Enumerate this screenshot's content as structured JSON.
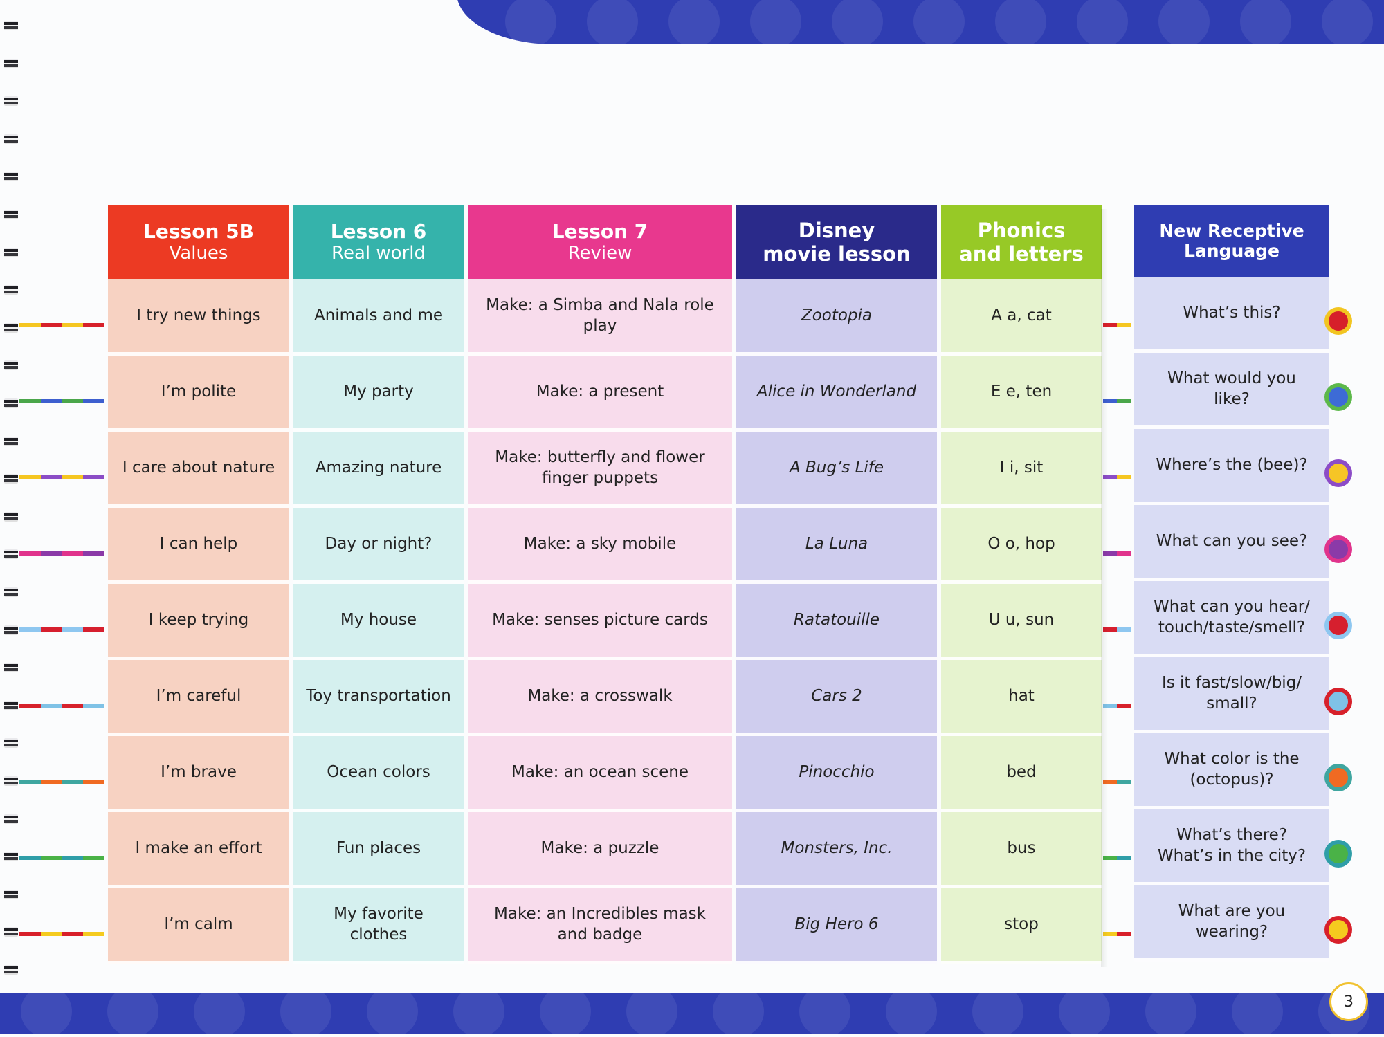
{
  "columns": [
    {
      "line1": "Lesson 5B",
      "line2": "Values",
      "color": "#ec3a23"
    },
    {
      "line1": "Lesson 6",
      "line2": "Real world",
      "color": "#35b3ab"
    },
    {
      "line1": "Lesson 7",
      "line2": "Review",
      "color": "#e8388e"
    },
    {
      "line1": "Disney",
      "line2": "movie lesson",
      "color": "#2a2a8a"
    },
    {
      "line1": "Phonics",
      "line2": "and letters",
      "color": "#97c926"
    }
  ],
  "receptive_header": {
    "line1": "New Receptive",
    "line2": "Language",
    "color": "#2f3db2"
  },
  "rows": [
    {
      "values": "I try new things",
      "real_world": "Animals and me",
      "review": "Make: a Simba and Nala role play",
      "movie": "Zootopia",
      "phonics": "A a, cat",
      "receptive": "What’s this?"
    },
    {
      "values": "I’m polite",
      "real_world": "My party",
      "review": "Make: a present",
      "movie": "Alice in Wonderland",
      "phonics": "E e, ten",
      "receptive": "What would you like?"
    },
    {
      "values": "I care about nature",
      "real_world": "Amazing nature",
      "review": "Make: butterfly and flower finger puppets",
      "movie": "A Bug’s Life",
      "phonics": "I i, sit",
      "receptive": "Where’s the (bee)?"
    },
    {
      "values": "I can help",
      "real_world": "Day or night?",
      "review": "Make: a sky mobile",
      "movie": "La Luna",
      "phonics": "O o, hop",
      "receptive": "What can you see?"
    },
    {
      "values": "I keep trying",
      "real_world": "My house",
      "review": "Make: senses picture cards",
      "movie": "Ratatouille",
      "phonics": "U u, sun",
      "receptive": "What can you hear/ touch/taste/smell?"
    },
    {
      "values": "I’m careful",
      "real_world": "Toy transportation",
      "review": "Make: a crosswalk",
      "movie": "Cars 2",
      "phonics": "hat",
      "receptive": "Is it fast/slow/big/ small?"
    },
    {
      "values": "I’m brave",
      "real_world": "Ocean colors",
      "review": "Make: an ocean scene",
      "movie": "Pinocchio",
      "phonics": "bed",
      "receptive": "What color is the (octopus)?"
    },
    {
      "values": "I make an effort",
      "real_world": "Fun places",
      "review": "Make: a puzzle",
      "movie": "Monsters, Inc.",
      "phonics": "bus",
      "receptive": "What’s there? What’s in the city?"
    },
    {
      "values": "I’m calm",
      "real_world": "My favorite clothes",
      "review": "Make: an Incredibles mask and badge",
      "movie": "Big Hero 6",
      "phonics": "stop",
      "receptive": "What are you wearing?"
    }
  ],
  "bullets": [
    {
      "ring": "#f2c521",
      "fill": "#d6202a"
    },
    {
      "ring": "#5cb84a",
      "fill": "#3d6bd6"
    },
    {
      "ring": "#8c4cc7",
      "fill": "#f6c526"
    },
    {
      "ring": "#e0338c",
      "fill": "#8b3aa8"
    },
    {
      "ring": "#8ec7f0",
      "fill": "#d61f2e"
    },
    {
      "ring": "#d7212b",
      "fill": "#7fc2e6"
    },
    {
      "ring": "#3fa6a0",
      "fill": "#f06a22"
    },
    {
      "ring": "#2f9ea8",
      "fill": "#4ab247"
    },
    {
      "ring": "#d8202a",
      "fill": "#f5cb1f"
    }
  ],
  "strips": [
    [
      "#f5c621",
      "#d7202a",
      "#f5c621",
      "#d7202a"
    ],
    [
      "#4aa64a",
      "#3d5fcf",
      "#4aa64a",
      "#3d5fcf"
    ],
    [
      "#f5c621",
      "#8b4dc6",
      "#f5c621",
      "#8b4dc6"
    ],
    [
      "#e0338c",
      "#8b3aa8",
      "#e0338c",
      "#8b3aa8"
    ],
    [
      "#8ec7f0",
      "#d61f2e",
      "#8ec7f0",
      "#d61f2e"
    ],
    [
      "#d7212b",
      "#7fc2e6",
      "#d7212b",
      "#7fc2e6"
    ],
    [
      "#3fa6a0",
      "#f06a22",
      "#3fa6a0",
      "#f06a22"
    ],
    [
      "#2f9ea8",
      "#4ab247",
      "#2f9ea8",
      "#4ab247"
    ],
    [
      "#d8202a",
      "#f5cb1f",
      "#d8202a",
      "#f5cb1f"
    ]
  ],
  "page_number": "3"
}
